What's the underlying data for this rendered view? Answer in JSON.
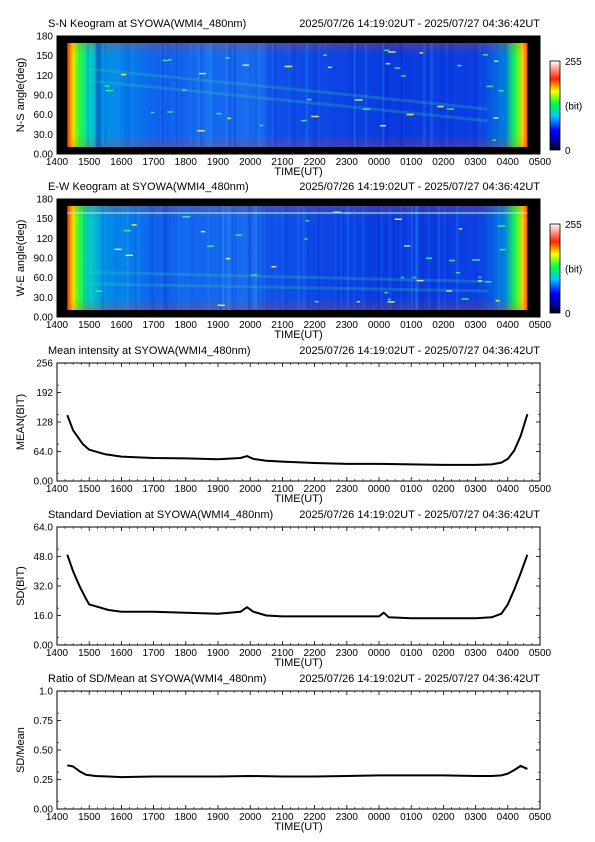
{
  "panels": [
    {
      "title": "S-N Keogram at SYOWA(WMI4_480nm)",
      "time_range": "2025/07/26 14:19:02UT - 2025/07/27 04:36:42UT",
      "ylabel": "N-S angle(deg)",
      "xlabel": "TIME(UT)",
      "yticks": [
        "0.00",
        "30.0",
        "60.0",
        "90.0",
        "120",
        "150",
        "180"
      ],
      "colorbar": {
        "max": "255",
        "unit": "(bit)",
        "min": "0"
      }
    },
    {
      "title": "E-W Keogram at SYOWA(WMI4_480nm)",
      "time_range": "2025/07/26 14:19:02UT - 2025/07/27 04:36:42UT",
      "ylabel": "W-E angle(deg)",
      "xlabel": "TIME(UT)",
      "yticks": [
        "0.00",
        "30.0",
        "60.0",
        "90.0",
        "120",
        "150",
        "180"
      ],
      "colorbar": {
        "max": "255",
        "unit": "(bit)",
        "min": "0"
      }
    },
    {
      "title": "Mean intensity at SYOWA(WMI4_480nm)",
      "time_range": "2025/07/26 14:19:02UT - 2025/07/27 04:36:42UT",
      "ylabel": "MEAN(BIT)",
      "xlabel": "TIME(UT)",
      "yticks": [
        "0.00",
        "64.0",
        "128",
        "192",
        "256"
      ]
    },
    {
      "title": "Standard Deviation at SYOWA(WMI4_480nm)",
      "time_range": "2025/07/26 14:19:02UT - 2025/07/27 04:36:42UT",
      "ylabel": "SD(BIT)",
      "xlabel": "TIME(UT)",
      "yticks": [
        "0.00",
        "16.0",
        "32.0",
        "48.0",
        "64.0"
      ]
    },
    {
      "title": "Ratio of SD/Mean at SYOWA(WMI4_480nm)",
      "time_range": "2025/07/26 14:19:02UT - 2025/07/27 04:36:42UT",
      "ylabel": "SD/Mean",
      "xlabel": "TIME(UT)",
      "yticks": [
        "0.00",
        "0.25",
        "0.50",
        "0.75",
        "1.0"
      ]
    }
  ],
  "xticks": [
    "1400",
    "1500",
    "1600",
    "1700",
    "1800",
    "1900",
    "2000",
    "2100",
    "2200",
    "2300",
    "0000",
    "0100",
    "0200",
    "0300",
    "0400",
    "0500"
  ],
  "chart_data": [
    {
      "type": "heatmap",
      "title": "S-N Keogram at SYOWA(WMI4_480nm)",
      "xlabel": "TIME(UT)",
      "ylabel": "N-S angle(deg)",
      "xlim": [
        14.0,
        29.0
      ],
      "ylim": [
        0,
        180
      ],
      "zlim": [
        0,
        255
      ],
      "data_start": 14.32,
      "data_end": 28.61,
      "colormap": "rainbow (black-blue-cyan-green-yellow-red-white)"
    },
    {
      "type": "heatmap",
      "title": "E-W Keogram at SYOWA(WMI4_480nm)",
      "xlabel": "TIME(UT)",
      "ylabel": "W-E angle(deg)",
      "xlim": [
        14.0,
        29.0
      ],
      "ylim": [
        0,
        180
      ],
      "zlim": [
        0,
        255
      ],
      "data_start": 14.32,
      "data_end": 28.61,
      "colormap": "rainbow (black-blue-cyan-green-yellow-red-white)"
    },
    {
      "type": "line",
      "title": "Mean intensity at SYOWA(WMI4_480nm)",
      "xlabel": "TIME(UT)",
      "ylabel": "MEAN(BIT)",
      "xlim": [
        14.0,
        29.0
      ],
      "ylim": [
        0,
        256
      ],
      "x": [
        14.32,
        14.5,
        14.8,
        15.0,
        15.5,
        16.0,
        17.0,
        18.0,
        19.0,
        19.7,
        19.9,
        20.1,
        20.5,
        21.0,
        22.0,
        23.0,
        24.0,
        25.0,
        26.0,
        27.0,
        27.5,
        27.8,
        28.0,
        28.2,
        28.4,
        28.61
      ],
      "y": [
        143,
        110,
        80,
        68,
        58,
        53,
        50,
        49,
        47,
        50,
        54,
        48,
        44,
        42,
        39,
        37,
        37,
        36,
        35,
        35,
        36,
        40,
        48,
        66,
        98,
        145
      ]
    },
    {
      "type": "line",
      "title": "Standard Deviation at SYOWA(WMI4_480nm)",
      "xlabel": "TIME(UT)",
      "ylabel": "SD(BIT)",
      "xlim": [
        14.0,
        29.0
      ],
      "ylim": [
        0,
        64
      ],
      "x": [
        14.32,
        14.5,
        14.7,
        14.9,
        15.0,
        15.3,
        15.6,
        16.0,
        17.0,
        18.0,
        19.0,
        19.7,
        19.9,
        20.1,
        20.5,
        21.0,
        22.0,
        23.0,
        24.0,
        24.15,
        24.3,
        25.0,
        26.0,
        27.0,
        27.5,
        27.8,
        28.0,
        28.2,
        28.4,
        28.61
      ],
      "y": [
        49,
        40,
        32,
        25,
        22,
        20.5,
        19,
        18,
        18,
        17.5,
        17,
        18,
        20.5,
        18,
        16,
        15.5,
        15.5,
        15.5,
        15.5,
        17.5,
        15,
        14.5,
        14.5,
        14.5,
        15,
        17,
        22,
        30,
        39,
        49
      ]
    },
    {
      "type": "line",
      "title": "Ratio of SD/Mean at SYOWA(WMI4_480nm)",
      "xlabel": "TIME(UT)",
      "ylabel": "SD/Mean",
      "xlim": [
        14.0,
        29.0
      ],
      "ylim": [
        0,
        1.0
      ],
      "x": [
        14.32,
        14.5,
        14.7,
        14.9,
        15.2,
        15.6,
        16.0,
        17.0,
        18.0,
        19.0,
        20.0,
        21.0,
        22.0,
        23.0,
        24.0,
        25.0,
        26.0,
        27.0,
        27.5,
        27.8,
        28.0,
        28.2,
        28.4,
        28.61
      ],
      "y": [
        0.37,
        0.36,
        0.32,
        0.29,
        0.28,
        0.275,
        0.27,
        0.275,
        0.275,
        0.275,
        0.28,
        0.275,
        0.275,
        0.28,
        0.285,
        0.285,
        0.285,
        0.28,
        0.28,
        0.285,
        0.3,
        0.33,
        0.365,
        0.34
      ]
    }
  ]
}
